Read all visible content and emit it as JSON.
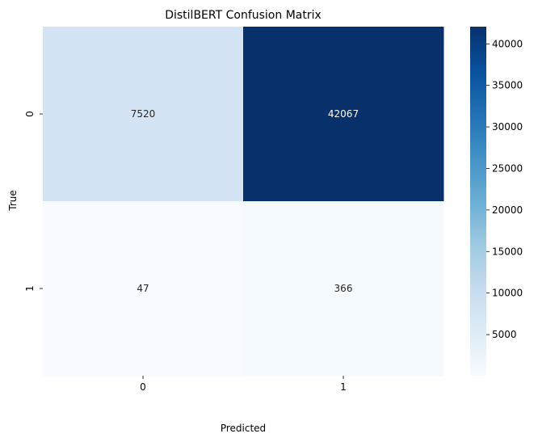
{
  "chart_data": {
    "type": "heatmap",
    "title": "DistilBERT Confusion Matrix",
    "xlabel": "Predicted",
    "ylabel": "True",
    "x_categories": [
      "0",
      "1"
    ],
    "y_categories": [
      "0",
      "1"
    ],
    "matrix": [
      [
        7520,
        42067
      ],
      [
        47,
        366
      ]
    ],
    "colormap": "Blues",
    "colorbar": {
      "vmin": 47,
      "vmax": 42067,
      "ticks": [
        5000,
        10000,
        15000,
        20000,
        25000,
        30000,
        35000,
        40000
      ],
      "tick_labels": [
        "5000",
        "10000",
        "15000",
        "20000",
        "25000",
        "30000",
        "35000",
        "40000"
      ]
    }
  }
}
